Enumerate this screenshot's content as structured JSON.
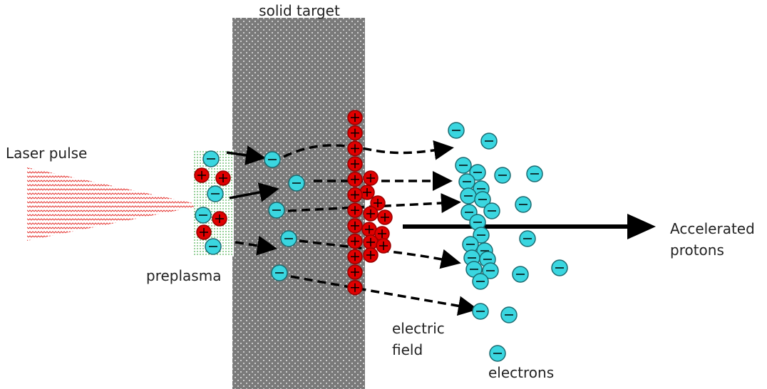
{
  "labels": {
    "title": "solid target",
    "laser": "Laser pulse",
    "preplasma": "preplasma",
    "field": [
      "electric",
      "field"
    ],
    "protons": [
      "Accelerated",
      "protons"
    ],
    "electrons": "electrons"
  }
}
